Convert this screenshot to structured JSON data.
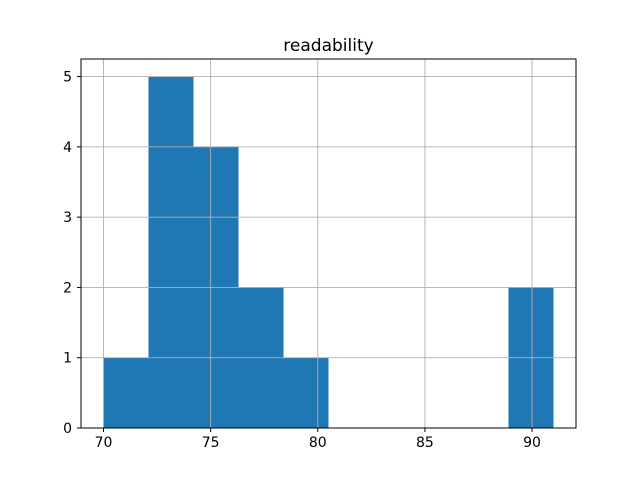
{
  "chart_data": {
    "type": "bar",
    "subtype": "histogram",
    "title": "readability",
    "xlabel": "",
    "ylabel": "",
    "bin_edges": [
      70.0,
      72.1,
      74.2,
      76.3,
      78.4,
      80.5,
      82.6,
      84.7,
      86.8,
      88.9,
      91.0
    ],
    "counts": [
      1,
      5,
      4,
      2,
      1,
      0,
      0,
      0,
      0,
      2
    ],
    "x_ticks": [
      "70",
      "75",
      "80",
      "85",
      "90"
    ],
    "x_tick_values": [
      70,
      75,
      80,
      85,
      90
    ],
    "y_ticks": [
      "0",
      "1",
      "2",
      "3",
      "4",
      "5"
    ],
    "y_tick_values": [
      0,
      1,
      2,
      3,
      4,
      5
    ],
    "xlim": [
      68.95,
      92.05
    ],
    "ylim": [
      0,
      5.25
    ],
    "grid": true,
    "grid_above_bars": true,
    "legend": false,
    "bar_color": "#1f77b4",
    "grid_color": "#b0b0b0",
    "spine_color": "#000000",
    "background_color": "#ffffff"
  }
}
